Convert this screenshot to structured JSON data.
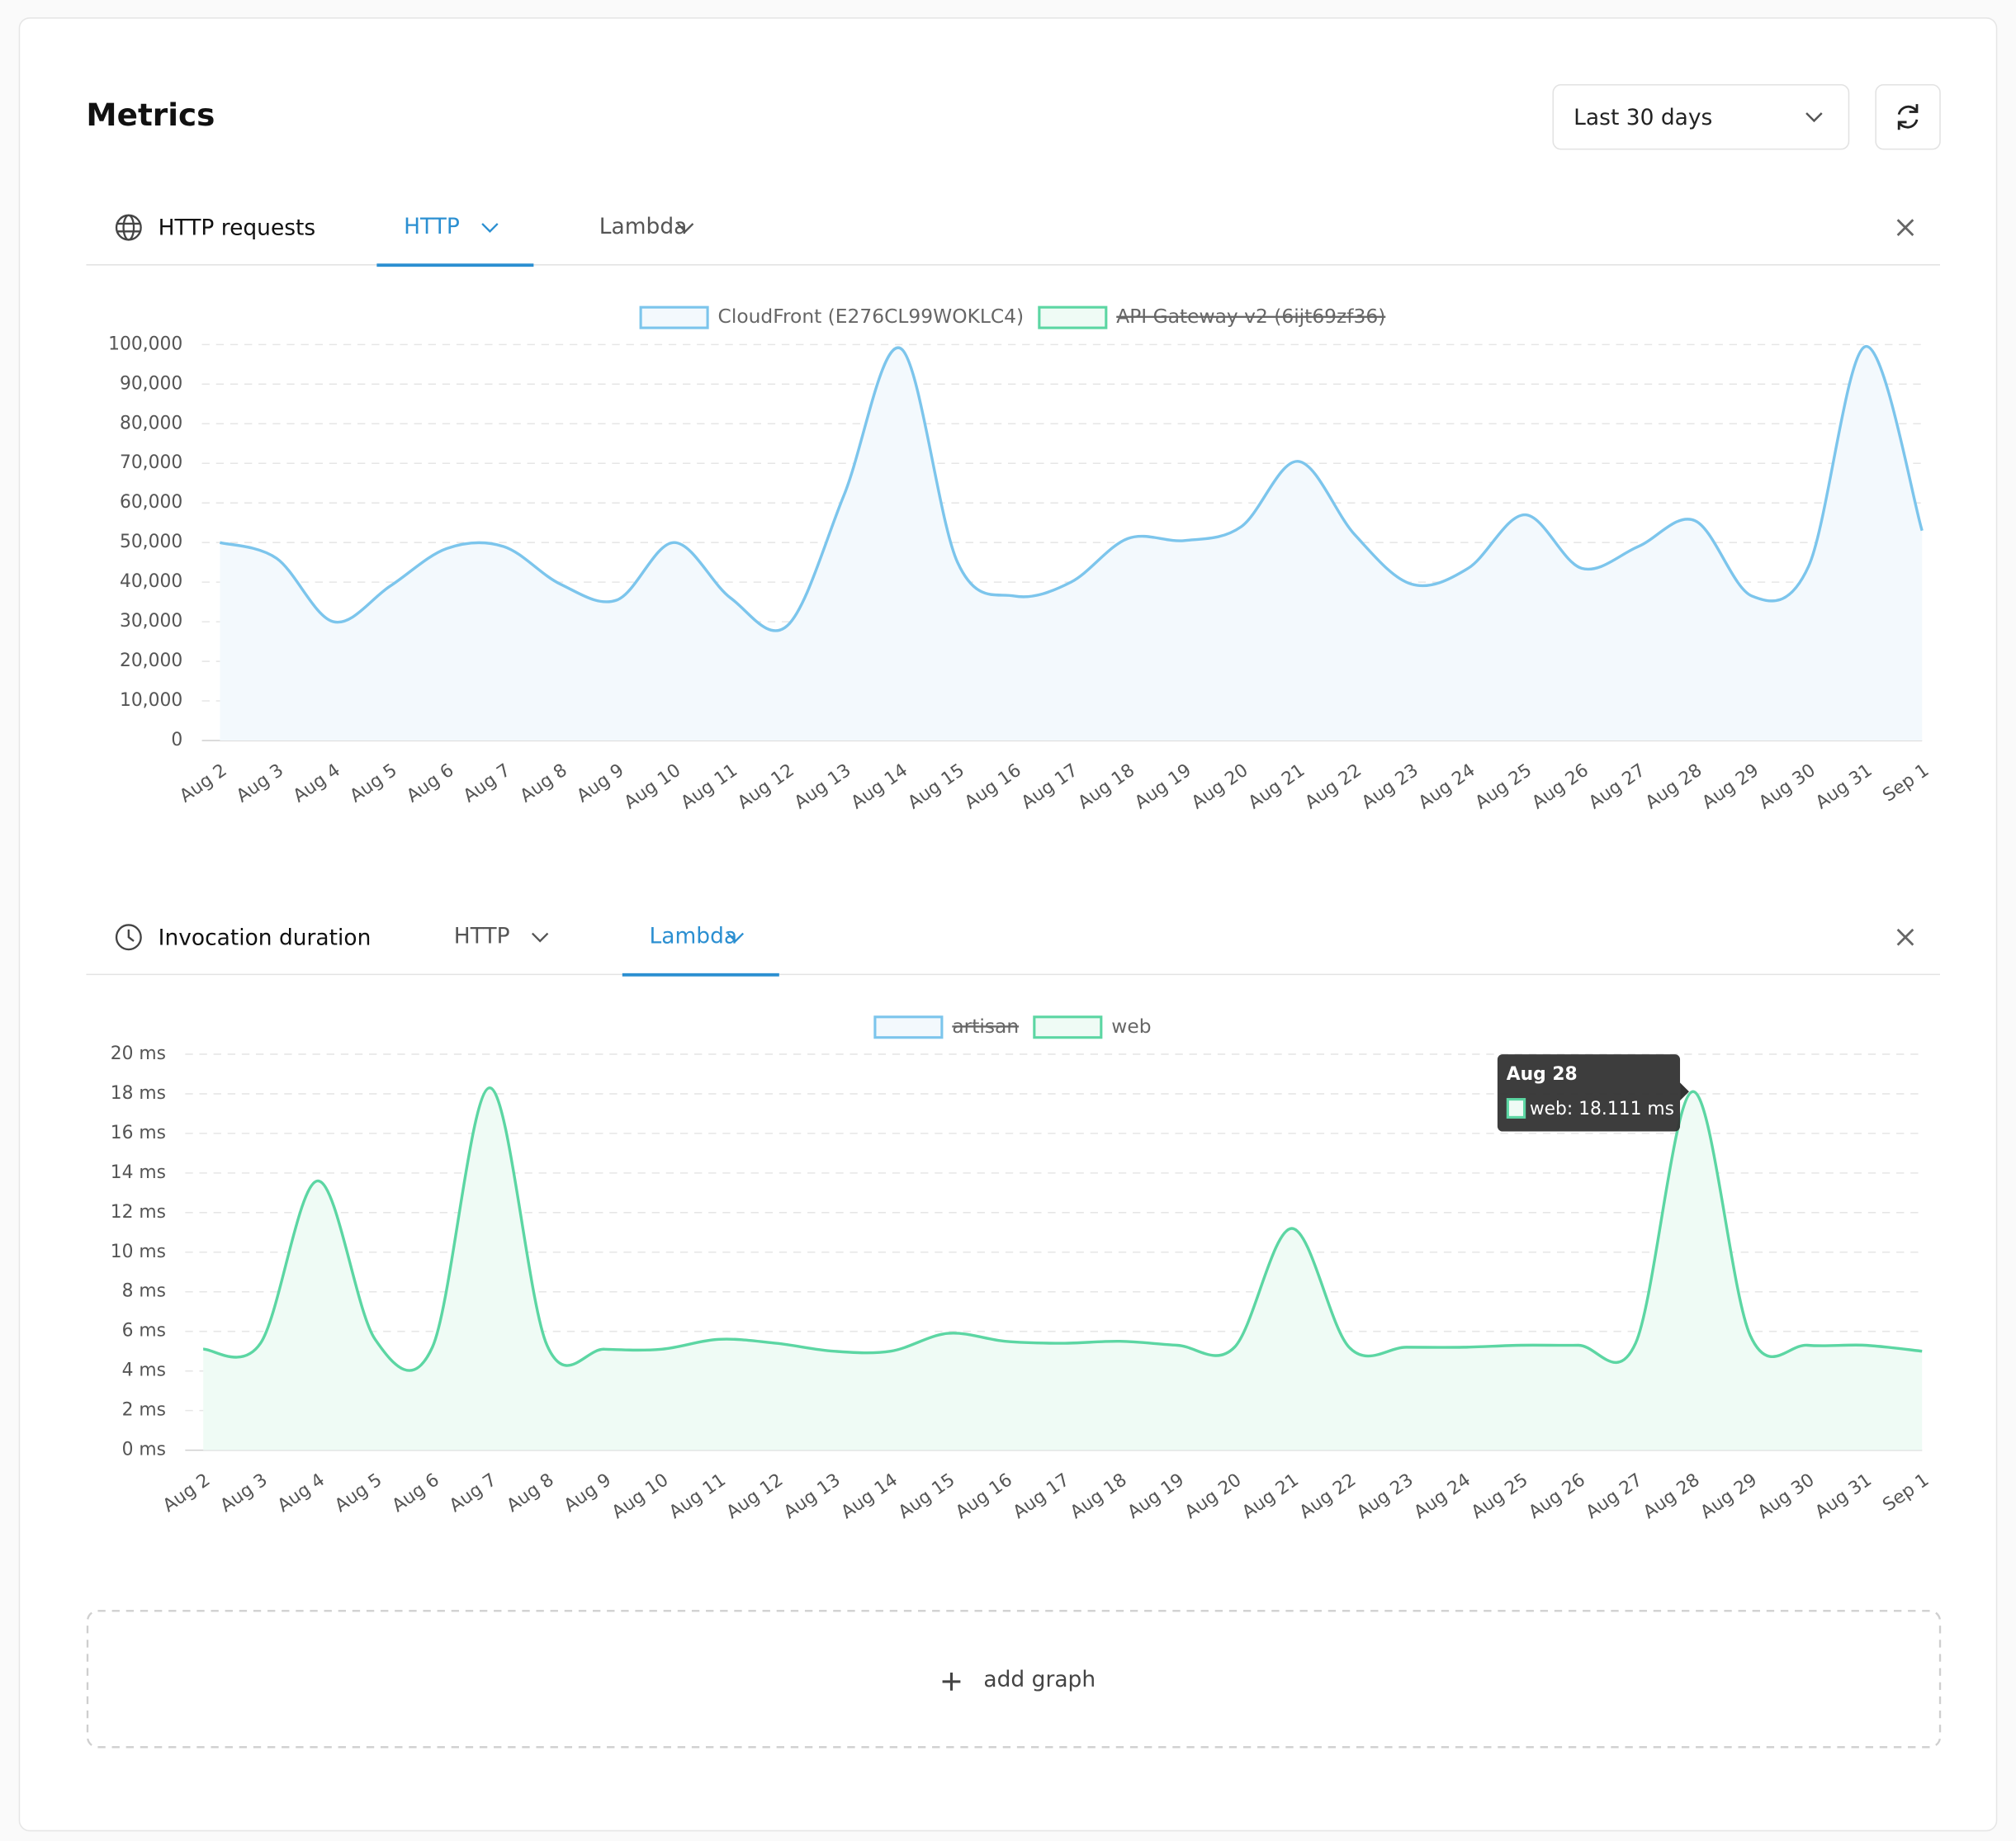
{
  "header": {
    "title": "Metrics",
    "range": "Last 30 days"
  },
  "add_graph": "add graph",
  "chart_data": [
    {
      "type": "line",
      "title": "HTTP requests",
      "icon": "globe",
      "tabs": [
        "HTTP",
        "Lambda"
      ],
      "active_tab": "HTTP",
      "categories": [
        "Aug 2",
        "Aug 3",
        "Aug 4",
        "Aug 5",
        "Aug 6",
        "Aug 7",
        "Aug 8",
        "Aug 9",
        "Aug 10",
        "Aug 11",
        "Aug 12",
        "Aug 13",
        "Aug 14",
        "Aug 15",
        "Aug 16",
        "Aug 17",
        "Aug 18",
        "Aug 19",
        "Aug 20",
        "Aug 21",
        "Aug 22",
        "Aug 23",
        "Aug 24",
        "Aug 25",
        "Aug 26",
        "Aug 27",
        "Aug 28",
        "Aug 29",
        "Aug 30",
        "Aug 31",
        "Sep 1"
      ],
      "series": [
        {
          "name": "CloudFront (E276CL99WOKLC4)",
          "color": "#7cc5ec",
          "fill": "#f3f9fd",
          "values": [
            50000,
            46000,
            30000,
            39000,
            48500,
            49000,
            39500,
            35500,
            50000,
            36000,
            29000,
            62000,
            99000,
            45000,
            36500,
            40000,
            51000,
            50500,
            54000,
            70500,
            52000,
            39500,
            43500,
            57000,
            43500,
            49000,
            55500,
            36500,
            44000,
            99500,
            53000
          ]
        },
        {
          "name": "API Gateway v2 (6ijt69zf36)",
          "color": "#5cd6a3",
          "fill": "#effbf5",
          "hidden": true,
          "values": [
            null,
            null,
            null,
            null,
            null,
            null,
            null,
            null,
            null,
            null,
            null,
            null,
            null,
            null,
            null,
            null,
            null,
            null,
            null,
            null,
            null,
            null,
            null,
            null,
            null,
            null,
            null,
            null,
            null,
            null,
            null
          ]
        }
      ],
      "ylim": [
        0,
        100000
      ],
      "yticks": [
        0,
        {
          "value": 10000,
          "label": "10,000"
        },
        {
          "value": 20000,
          "label": "20,000"
        },
        {
          "value": 30000,
          "label": "30,000"
        },
        {
          "value": 40000,
          "label": "40,000"
        },
        {
          "value": 50000,
          "label": "50,000"
        },
        {
          "value": 60000,
          "label": "60,000"
        },
        {
          "value": 70000,
          "label": "70,000"
        },
        {
          "value": 80000,
          "label": "80,000"
        },
        {
          "value": 90000,
          "label": "90,000"
        },
        {
          "value": 100000,
          "label": "100,000"
        }
      ],
      "grid": true
    },
    {
      "type": "line",
      "title": "Invocation duration",
      "icon": "clock",
      "tabs": [
        "HTTP",
        "Lambda"
      ],
      "active_tab": "Lambda",
      "categories": [
        "Aug 2",
        "Aug 3",
        "Aug 4",
        "Aug 5",
        "Aug 6",
        "Aug 7",
        "Aug 8",
        "Aug 9",
        "Aug 10",
        "Aug 11",
        "Aug 12",
        "Aug 13",
        "Aug 14",
        "Aug 15",
        "Aug 16",
        "Aug 17",
        "Aug 18",
        "Aug 19",
        "Aug 20",
        "Aug 21",
        "Aug 22",
        "Aug 23",
        "Aug 24",
        "Aug 25",
        "Aug 26",
        "Aug 27",
        "Aug 28",
        "Aug 29",
        "Aug 30",
        "Aug 31",
        "Sep 1"
      ],
      "series": [
        {
          "name": "artisan",
          "color": "#7cc5ec",
          "fill": "#f3f9fd",
          "hidden": true,
          "values": [
            null,
            null,
            null,
            null,
            null,
            null,
            null,
            null,
            null,
            null,
            null,
            null,
            null,
            null,
            null,
            null,
            null,
            null,
            null,
            null,
            null,
            null,
            null,
            null,
            null,
            null,
            null,
            null,
            null,
            null,
            null
          ]
        },
        {
          "name": "web",
          "color": "#5cd6a3",
          "fill": "#effbf5",
          "values": [
            5.1,
            5.4,
            13.6,
            5.6,
            5.2,
            18.3,
            5.3,
            5.1,
            5.1,
            5.6,
            5.4,
            5.0,
            5.0,
            5.9,
            5.5,
            5.4,
            5.5,
            5.3,
            5.2,
            11.2,
            5.2,
            5.2,
            5.2,
            5.3,
            5.3,
            5.4,
            18.111,
            5.8,
            5.3,
            5.3,
            5.0
          ]
        }
      ],
      "ylim": [
        0,
        20
      ],
      "yticks": [
        {
          "value": 0,
          "label": "0 ms"
        },
        {
          "value": 2,
          "label": "2 ms"
        },
        {
          "value": 4,
          "label": "4 ms"
        },
        {
          "value": 6,
          "label": "6 ms"
        },
        {
          "value": 8,
          "label": "8 ms"
        },
        {
          "value": 10,
          "label": "10 ms"
        },
        {
          "value": 12,
          "label": "12 ms"
        },
        {
          "value": 14,
          "label": "14 ms"
        },
        {
          "value": 16,
          "label": "16 ms"
        },
        {
          "value": 18,
          "label": "18 ms"
        },
        {
          "value": 20,
          "label": "20 ms"
        }
      ],
      "grid": true,
      "tooltip": {
        "category": "Aug 28",
        "text": "web: 18.111 ms"
      }
    }
  ]
}
